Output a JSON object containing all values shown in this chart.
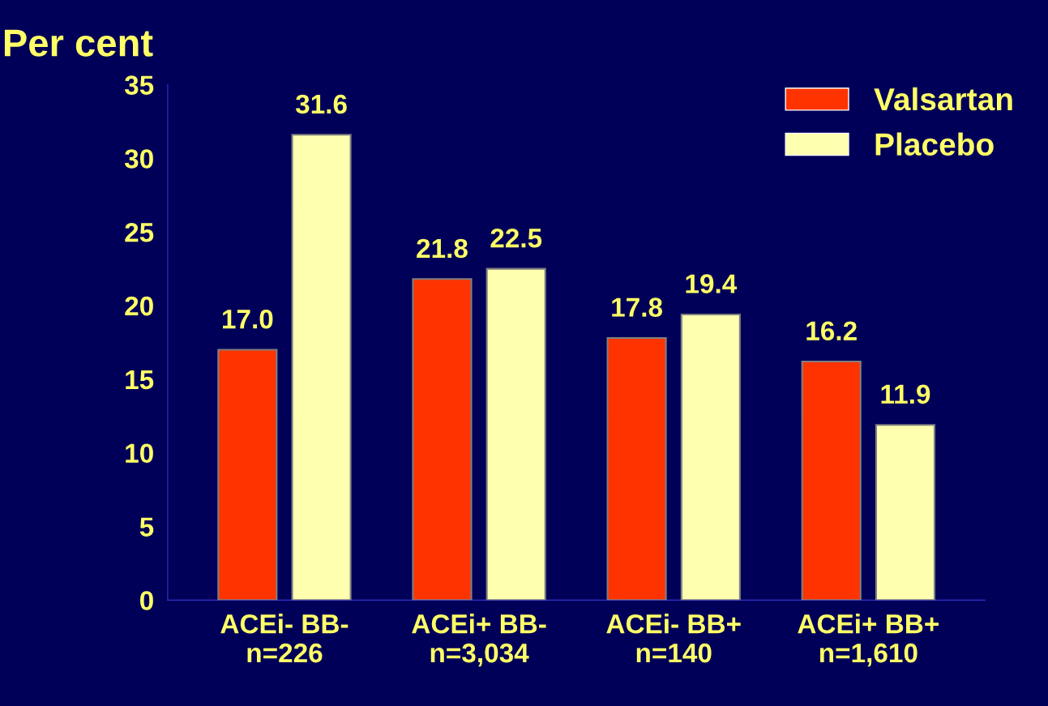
{
  "chart_data": {
    "type": "bar",
    "ylabel": "Per cent",
    "categories": [
      "ACEi- BB-\nn=226",
      "ACEi+ BB-\nn=3,034",
      "ACEi- BB+\nn=140",
      "ACEi+ BB+\nn=1,610"
    ],
    "series": [
      {
        "name": "Valsartan",
        "color": "#ff3300",
        "values": [
          17.0,
          21.8,
          17.8,
          16.2
        ],
        "value_labels": [
          "17.0",
          "21.8",
          "17.8",
          "16.2"
        ]
      },
      {
        "name": "Placebo",
        "color": "#ffffb0",
        "values": [
          31.6,
          22.5,
          19.4,
          11.9
        ],
        "value_labels": [
          "31.6",
          "22.5",
          "19.4",
          "11.9"
        ]
      }
    ],
    "ylim": [
      0,
      35
    ],
    "yticks": [
      0,
      5,
      10,
      15,
      20,
      25,
      30,
      35
    ],
    "grid": false,
    "legend": "top right"
  }
}
